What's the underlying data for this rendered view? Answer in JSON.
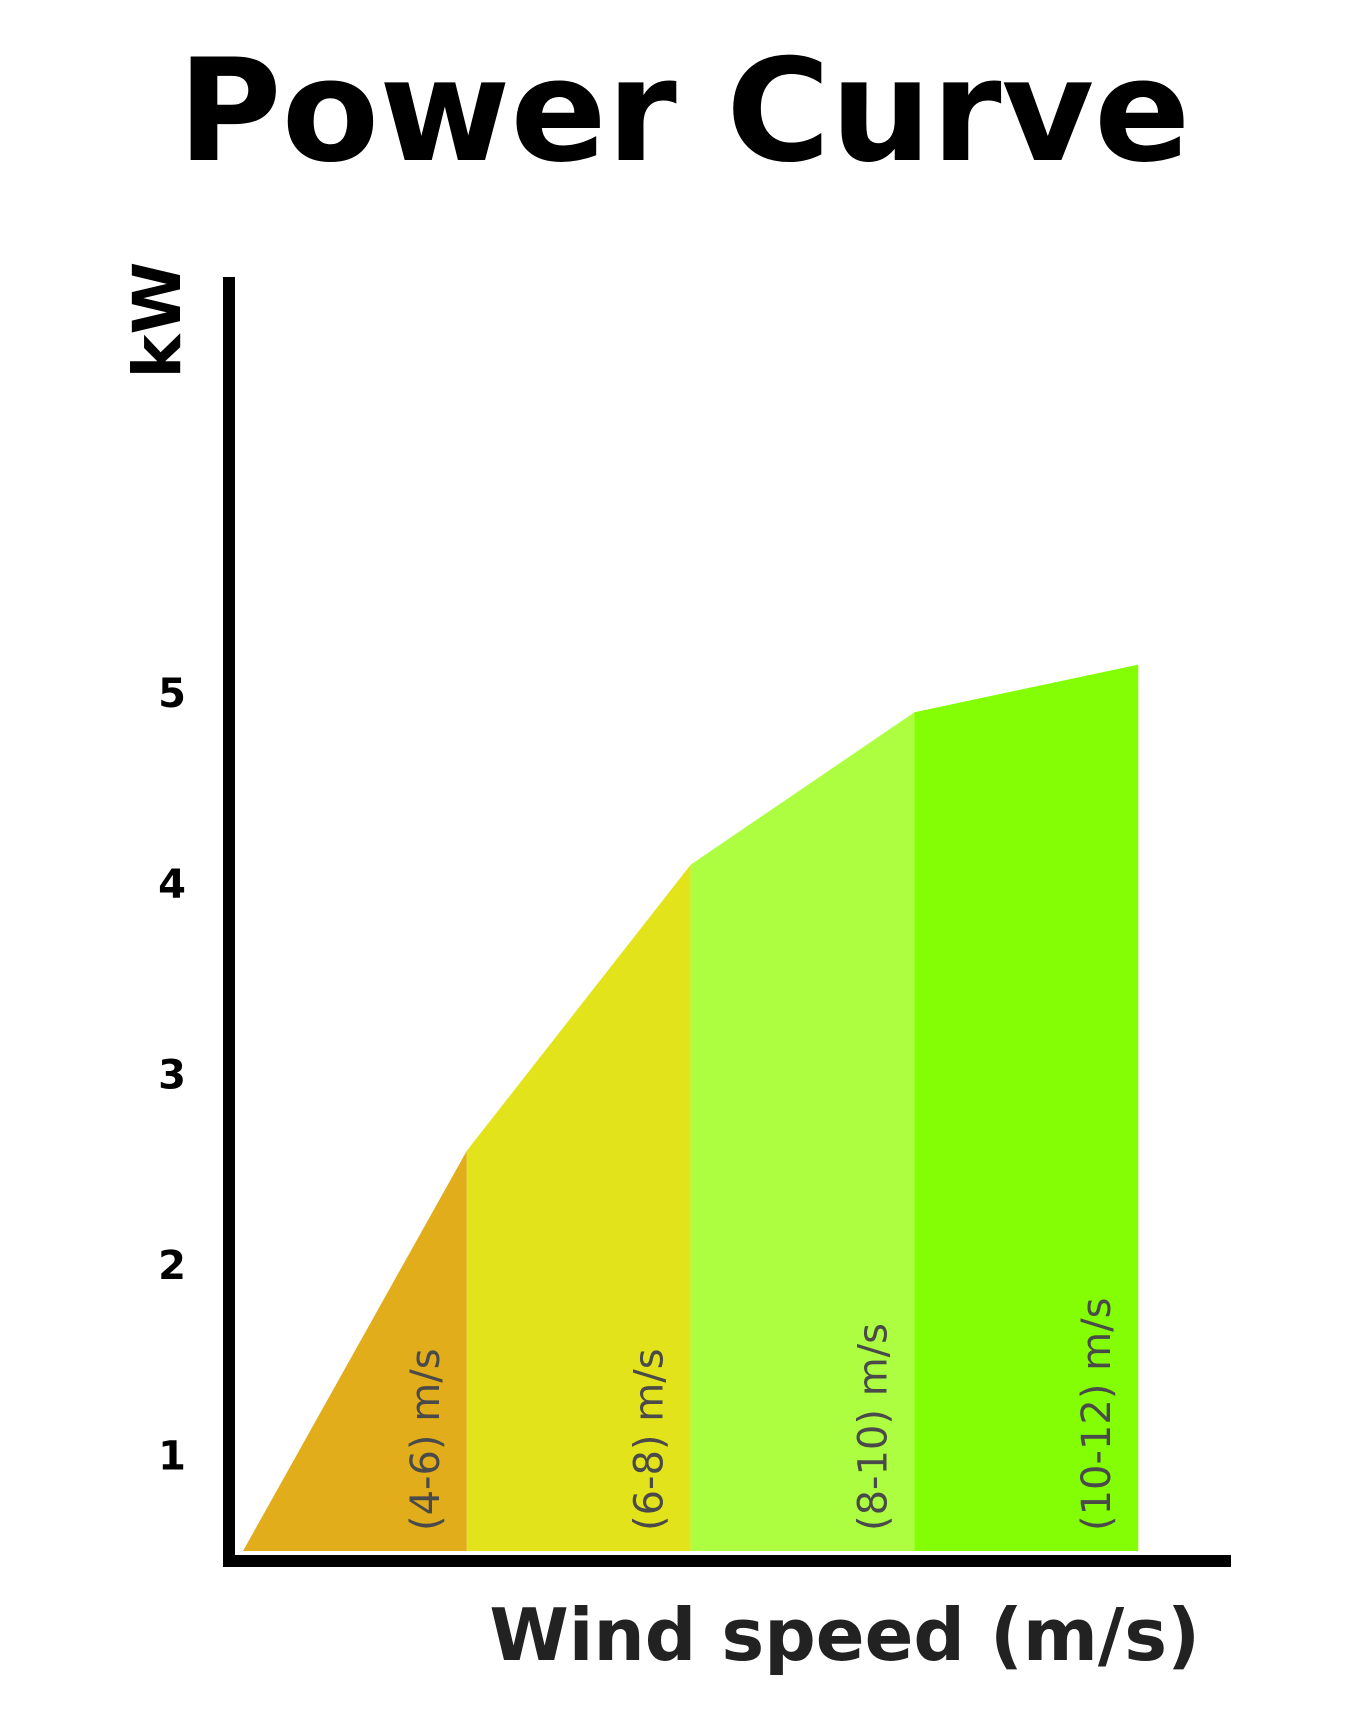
{
  "chart_data": {
    "type": "area",
    "title": "Power Curve",
    "ylabel": "kW",
    "xlabel": "Wind speed (m/s)",
    "y_ticks": [
      "1",
      "2",
      "3",
      "4",
      "5"
    ],
    "ylim": [
      0.5,
      6.9
    ],
    "xlim": [
      4,
      12.4
    ],
    "points": [
      {
        "x": 4,
        "y": 0.5
      },
      {
        "x": 6,
        "y": 2.6
      },
      {
        "x": 8,
        "y": 4.1
      },
      {
        "x": 10,
        "y": 4.9
      },
      {
        "x": 12,
        "y": 5.15
      }
    ],
    "bands": [
      {
        "label": "(4-6) m/s",
        "from": 4,
        "to": 6,
        "color": "#e2ad1b"
      },
      {
        "label": "(6-8) m/s",
        "from": 6,
        "to": 8,
        "color": "#e3e31b"
      },
      {
        "label": "(8-10) m/s",
        "from": 8,
        "to": 10,
        "color": "#adfe40"
      },
      {
        "label": "(10-12) m/s",
        "from": 10,
        "to": 12,
        "color": "#84fe04"
      }
    ]
  }
}
